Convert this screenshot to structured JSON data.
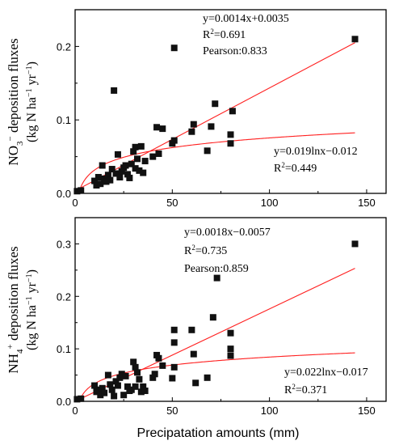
{
  "chart_data": [
    {
      "type": "scatter",
      "ylabel_main": "NO",
      "ylabel_sub": "3",
      "ylabel_sup": "−",
      "ylabel_rest": " deposition fluxes",
      "yunit_pre": "(kg N ha",
      "yunit_sup1": "−1",
      "yunit_mid": " yr",
      "yunit_sup2": "−1",
      "yunit_post": ")",
      "xlim": [
        0,
        160
      ],
      "ylim": [
        0,
        0.25
      ],
      "xticks": [
        "0",
        "50",
        "100",
        "150"
      ],
      "yticks": [
        "0.0",
        "0.1",
        "0.2"
      ],
      "ytick_values": [
        0,
        0.1,
        0.2
      ],
      "points": [
        [
          1,
          0.003
        ],
        [
          3,
          0.004
        ],
        [
          10,
          0.017
        ],
        [
          11,
          0.011
        ],
        [
          12,
          0.022
        ],
        [
          13,
          0.013
        ],
        [
          14,
          0.038
        ],
        [
          15,
          0.02
        ],
        [
          16,
          0.016
        ],
        [
          17,
          0.025
        ],
        [
          18,
          0.018
        ],
        [
          19,
          0.033
        ],
        [
          20,
          0.14
        ],
        [
          21,
          0.027
        ],
        [
          22,
          0.053
        ],
        [
          23,
          0.022
        ],
        [
          24,
          0.03
        ],
        [
          25,
          0.035
        ],
        [
          26,
          0.038
        ],
        [
          27,
          0.026
        ],
        [
          28,
          0.021
        ],
        [
          29,
          0.04
        ],
        [
          30,
          0.057
        ],
        [
          31,
          0.063
        ],
        [
          31,
          0.034
        ],
        [
          32,
          0.047
        ],
        [
          33,
          0.031
        ],
        [
          34,
          0.064
        ],
        [
          35,
          0.028
        ],
        [
          36,
          0.044
        ],
        [
          40,
          0.05
        ],
        [
          42,
          0.09
        ],
        [
          43,
          0.054
        ],
        [
          45,
          0.088
        ],
        [
          50,
          0.068
        ],
        [
          51,
          0.072
        ],
        [
          51,
          0.198
        ],
        [
          60,
          0.084
        ],
        [
          61,
          0.094
        ],
        [
          68,
          0.058
        ],
        [
          70,
          0.091
        ],
        [
          72,
          0.122
        ],
        [
          80,
          0.068
        ],
        [
          80,
          0.08
        ],
        [
          81,
          0.112
        ],
        [
          144,
          0.21
        ]
      ],
      "fits": [
        {
          "kind": "linear",
          "a": 0.0014,
          "b": 0.0035,
          "color": "#ff2020"
        },
        {
          "kind": "log",
          "a": 0.019,
          "b": -0.012,
          "color": "#ff2020"
        }
      ],
      "annotations": {
        "eq1": "y=0.0014x+0.0035",
        "r2_1": "0.691",
        "pearson": "Pearson:0.833",
        "eq2": "y=0.019lnx−0.012",
        "r2_2": "0.449"
      }
    },
    {
      "type": "scatter",
      "ylabel_main": "NH",
      "ylabel_sub": "4",
      "ylabel_sup": "+",
      "ylabel_rest": " deposition fluxes",
      "yunit_pre": "(kg N ha",
      "yunit_sup1": "−1",
      "yunit_mid": " yr",
      "yunit_sup2": "−1",
      "yunit_post": ")",
      "xlabel": "Precipatation amounts (mm)",
      "xlim": [
        0,
        160
      ],
      "ylim": [
        0,
        0.35
      ],
      "xticks": [
        "0",
        "50",
        "100",
        "150"
      ],
      "yticks": [
        "0.0",
        "0.1",
        "0.2",
        "0.3"
      ],
      "ytick_values": [
        0,
        0.1,
        0.2,
        0.3
      ],
      "points": [
        [
          1,
          0.004
        ],
        [
          3,
          0.005
        ],
        [
          10,
          0.03
        ],
        [
          11,
          0.018
        ],
        [
          12,
          0.022
        ],
        [
          13,
          0.012
        ],
        [
          14,
          0.025
        ],
        [
          15,
          0.016
        ],
        [
          17,
          0.05
        ],
        [
          18,
          0.032
        ],
        [
          19,
          0.022
        ],
        [
          20,
          0.01
        ],
        [
          21,
          0.038
        ],
        [
          22,
          0.03
        ],
        [
          23,
          0.045
        ],
        [
          24,
          0.052
        ],
        [
          25,
          0.012
        ],
        [
          26,
          0.048
        ],
        [
          27,
          0.028
        ],
        [
          28,
          0.02
        ],
        [
          29,
          0.022
        ],
        [
          30,
          0.075
        ],
        [
          31,
          0.028
        ],
        [
          31,
          0.065
        ],
        [
          32,
          0.055
        ],
        [
          33,
          0.042
        ],
        [
          34,
          0.018
        ],
        [
          35,
          0.028
        ],
        [
          36,
          0.02
        ],
        [
          40,
          0.045
        ],
        [
          41,
          0.052
        ],
        [
          42,
          0.088
        ],
        [
          43,
          0.082
        ],
        [
          45,
          0.068
        ],
        [
          50,
          0.044
        ],
        [
          51,
          0.065
        ],
        [
          51,
          0.112
        ],
        [
          51,
          0.136
        ],
        [
          60,
          0.136
        ],
        [
          61,
          0.09
        ],
        [
          62,
          0.035
        ],
        [
          68,
          0.045
        ],
        [
          71,
          0.16
        ],
        [
          73,
          0.235
        ],
        [
          80,
          0.087
        ],
        [
          80,
          0.1
        ],
        [
          80,
          0.13
        ],
        [
          144,
          0.3
        ]
      ],
      "fits": [
        {
          "kind": "linear",
          "a": 0.0018,
          "b": -0.0057,
          "color": "#ff2020"
        },
        {
          "kind": "log",
          "a": 0.022,
          "b": -0.017,
          "color": "#ff2020"
        }
      ],
      "annotations": {
        "eq1": "y=0.0018x−0.0057",
        "r2_1": "0.735",
        "pearson": "Pearson:0.859",
        "eq2": "y=0.022lnx−0.017",
        "r2_2": "0.371"
      }
    }
  ]
}
